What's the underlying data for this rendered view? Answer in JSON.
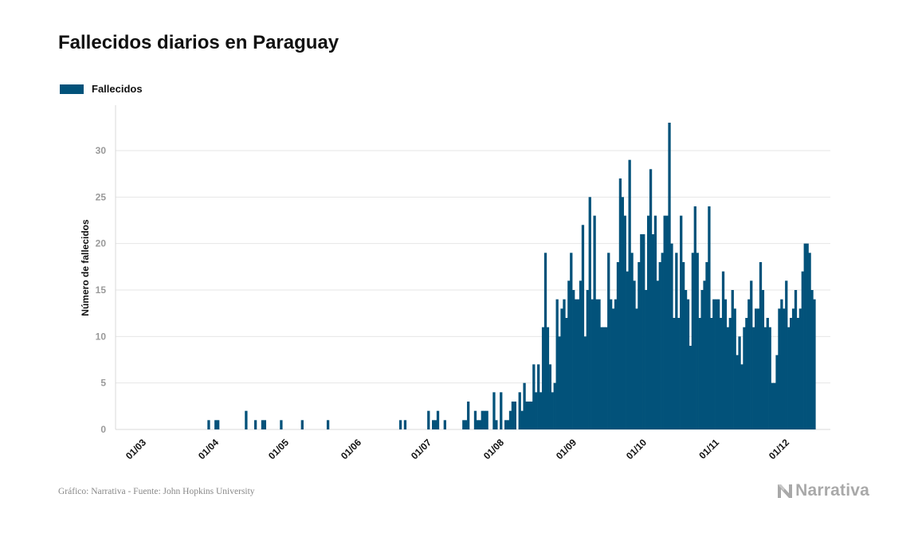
{
  "title": "Fallecidos diarios en Paraguay",
  "colors": {
    "bar": "#02527a",
    "grid": "#e6e6e6",
    "tick_text": "#9a9a9a",
    "axis_text": "#111111"
  },
  "footer": {
    "source": "Gráfico: Narrativa - Fuente: John Hopkins University",
    "brand": "Narrativa",
    "brand_icon": "narrativa-logo-icon"
  },
  "chart_data": {
    "type": "bar",
    "title": "Fallecidos diarios en Paraguay",
    "xlabel": "",
    "ylabel": "Número de fallecidos",
    "ylim": [
      0,
      34
    ],
    "grid": true,
    "legend_position": "top-left",
    "start_date": "2020-03-01",
    "x_ticks": [
      "01/03",
      "01/04",
      "01/05",
      "01/06",
      "01/07",
      "01/08",
      "01/09",
      "01/10",
      "01/11",
      "01/12"
    ],
    "y_ticks": [
      0,
      5,
      10,
      15,
      20,
      25,
      30
    ],
    "series": [
      {
        "name": "Fallecidos",
        "values": [
          0,
          0,
          0,
          0,
          0,
          0,
          0,
          0,
          0,
          0,
          0,
          0,
          0,
          0,
          0,
          0,
          0,
          0,
          0,
          0,
          0,
          0,
          0,
          0,
          0,
          0,
          1,
          0,
          0,
          1,
          1,
          0,
          0,
          0,
          0,
          0,
          0,
          0,
          0,
          0,
          0,
          0,
          2,
          0,
          0,
          0,
          1,
          0,
          0,
          1,
          1,
          0,
          0,
          0,
          0,
          0,
          0,
          1,
          0,
          0,
          0,
          0,
          0,
          0,
          0,
          0,
          1,
          0,
          0,
          0,
          0,
          0,
          0,
          0,
          0,
          0,
          0,
          1,
          0,
          0,
          0,
          0,
          0,
          0,
          0,
          0,
          0,
          0,
          0,
          0,
          0,
          0,
          0,
          0,
          0,
          0,
          0,
          0,
          0,
          0,
          0,
          0,
          0,
          0,
          0,
          0,
          0,
          0,
          1,
          0,
          1,
          0,
          0,
          0,
          0,
          0,
          0,
          0,
          0,
          0,
          2,
          0,
          1,
          1,
          2,
          0,
          0,
          1,
          0,
          0,
          0,
          0,
          0,
          0,
          0,
          1,
          1,
          3,
          0,
          0,
          2,
          1,
          1,
          2,
          2,
          2,
          0,
          0,
          4,
          1,
          0,
          4,
          0,
          1,
          1,
          2,
          3,
          3,
          0,
          4,
          2,
          5,
          3,
          3,
          3,
          7,
          4,
          7,
          4,
          11,
          19,
          11,
          7,
          4,
          5,
          14,
          10,
          13,
          14,
          12,
          16,
          19,
          15,
          14,
          14,
          16,
          22,
          10,
          15,
          25,
          14,
          23,
          14,
          14,
          11,
          11,
          11,
          19,
          14,
          13,
          14,
          18,
          27,
          25,
          23,
          17,
          29,
          19,
          16,
          13,
          18,
          21,
          21,
          15,
          23,
          28,
          21,
          23,
          16,
          18,
          19,
          23,
          23,
          33,
          20,
          12,
          19,
          12,
          23,
          18,
          15,
          14,
          9,
          19,
          24,
          19,
          12,
          15,
          16,
          18,
          24,
          12,
          14,
          14,
          14,
          12,
          17,
          14,
          11,
          12,
          15,
          13,
          8,
          10,
          7,
          11,
          12,
          14,
          16,
          11,
          13,
          13,
          18,
          15,
          11,
          12,
          11,
          5,
          5,
          8,
          13,
          14,
          13,
          16,
          11,
          12,
          13,
          15,
          12,
          13,
          17,
          20,
          20,
          19,
          15,
          14
        ]
      }
    ]
  }
}
